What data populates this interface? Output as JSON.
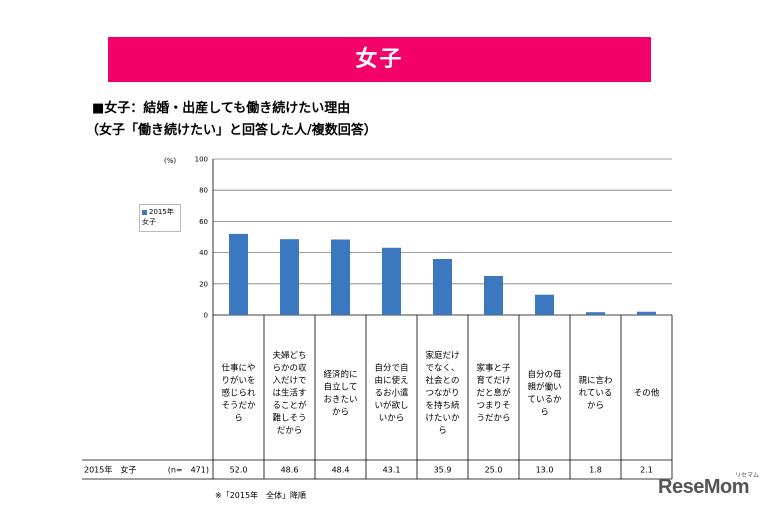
{
  "banner": {
    "title": "女子"
  },
  "heading": {
    "line1": "■女子：結婚・出産しても働き続けたい理由",
    "line2": "（女子「働き続けたい」と回答した人/複数回答）"
  },
  "chart_data": {
    "type": "bar",
    "unit_label": "(%)",
    "ylim": [
      0,
      100
    ],
    "yticks": [
      "0",
      "20",
      "40",
      "60",
      "80",
      "100"
    ],
    "legend": [
      "2015年",
      "女子"
    ],
    "categories": [
      [
        "仕事にや",
        "りがいを",
        "感じられ",
        "そうだか",
        "ら"
      ],
      [
        "夫婦どち",
        "らかの収",
        "入だけで",
        "は生活す",
        "ることが",
        "難しそう",
        "だから"
      ],
      [
        "経済的に",
        "自立して",
        "おきたい",
        "から"
      ],
      [
        "自分で自",
        "由に使え",
        "るお小遣",
        "いが欲し",
        "いから"
      ],
      [
        "家庭だけ",
        "でなく、",
        "社会との",
        "つながり",
        "を持ち続",
        "けたいか",
        "ら"
      ],
      [
        "家事と子",
        "育てだけ",
        "だと息が",
        "つまりそ",
        "うだから"
      ],
      [
        "自分の母",
        "親が働い",
        "ているか",
        "ら"
      ],
      [
        "親に言わ",
        "れている",
        "から"
      ],
      [
        "その他"
      ]
    ],
    "series": [
      {
        "name": "2015年 女子",
        "values": [
          52.0,
          48.6,
          48.4,
          43.1,
          35.9,
          25.0,
          13.0,
          1.8,
          2.1
        ]
      }
    ],
    "row": {
      "label": "2015年　女子",
      "n": "(n=　471)",
      "values": [
        "52.0",
        "48.6",
        "48.4",
        "43.1",
        "35.9",
        "25.0",
        "13.0",
        "1.8",
        "2.1"
      ]
    },
    "footnote": "※「2015年　全体」降順",
    "colors": {
      "bar": "#3c78c0",
      "grid": "#7f7f7f"
    }
  },
  "watermark": {
    "text": "ReseMom",
    "sub": "リセマム"
  }
}
